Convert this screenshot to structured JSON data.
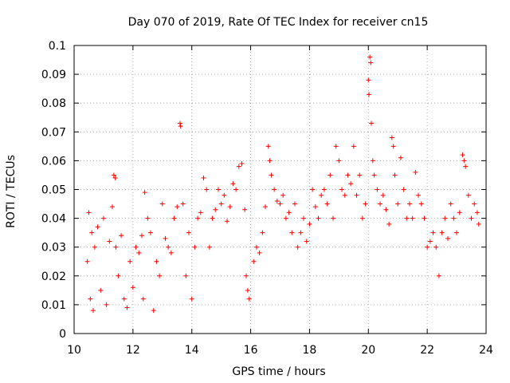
{
  "chart_data": {
    "type": "scatter",
    "title": "Day 070 of 2019, Rate Of TEC Index for receiver cn15",
    "xlabel": "GPS time / hours",
    "ylabel": "ROTI / TECUs",
    "xlim": [
      10,
      24
    ],
    "ylim": [
      0,
      0.1
    ],
    "xticks": [
      10,
      12,
      14,
      16,
      18,
      20,
      22,
      24
    ],
    "yticks": [
      0,
      0.01,
      0.02,
      0.03,
      0.04,
      0.05,
      0.06,
      0.07,
      0.08,
      0.09,
      0.1
    ],
    "grid": true,
    "marker": "plus",
    "color": "#ff0000",
    "series": [
      {
        "name": "ROTI",
        "x": [
          10.45,
          10.5,
          10.55,
          10.6,
          10.65,
          10.7,
          10.8,
          10.9,
          11.0,
          11.1,
          11.2,
          11.3,
          11.35,
          11.4,
          11.42,
          11.5,
          11.6,
          11.7,
          11.8,
          11.9,
          12.0,
          12.1,
          12.2,
          12.3,
          12.35,
          12.4,
          12.5,
          12.6,
          12.7,
          12.8,
          12.9,
          13.0,
          13.1,
          13.2,
          13.3,
          13.4,
          13.5,
          13.6,
          13.62,
          13.7,
          13.8,
          13.9,
          14.0,
          14.1,
          14.2,
          14.3,
          14.4,
          14.5,
          14.6,
          14.7,
          14.8,
          14.9,
          15.0,
          15.1,
          15.2,
          15.3,
          15.4,
          15.5,
          15.6,
          15.7,
          15.8,
          15.85,
          15.9,
          15.95,
          16.1,
          16.2,
          16.3,
          16.4,
          16.5,
          16.6,
          16.65,
          16.7,
          16.8,
          16.9,
          17.0,
          17.1,
          17.2,
          17.3,
          17.4,
          17.5,
          17.6,
          17.7,
          17.8,
          17.9,
          18.0,
          18.1,
          18.2,
          18.3,
          18.4,
          18.5,
          18.6,
          18.7,
          18.8,
          18.9,
          19.0,
          19.1,
          19.2,
          19.3,
          19.4,
          19.5,
          19.6,
          19.7,
          19.8,
          19.9,
          20.0,
          20.02,
          20.05,
          20.08,
          20.1,
          20.15,
          20.2,
          20.3,
          20.4,
          20.5,
          20.6,
          20.7,
          20.8,
          20.85,
          20.9,
          21.0,
          21.1,
          21.2,
          21.3,
          21.4,
          21.5,
          21.6,
          21.7,
          21.8,
          21.9,
          22.0,
          22.1,
          22.2,
          22.3,
          22.4,
          22.5,
          22.6,
          22.7,
          22.8,
          22.9,
          23.0,
          23.1,
          23.2,
          23.25,
          23.3,
          23.4,
          23.5,
          23.6,
          23.7,
          23.75
        ],
        "y": [
          0.025,
          0.042,
          0.012,
          0.035,
          0.008,
          0.03,
          0.037,
          0.015,
          0.04,
          0.01,
          0.032,
          0.044,
          0.055,
          0.054,
          0.03,
          0.02,
          0.034,
          0.012,
          0.009,
          0.025,
          0.016,
          0.03,
          0.028,
          0.034,
          0.012,
          0.049,
          0.04,
          0.035,
          0.008,
          0.025,
          0.02,
          0.045,
          0.033,
          0.03,
          0.028,
          0.04,
          0.044,
          0.073,
          0.072,
          0.045,
          0.02,
          0.035,
          0.012,
          0.03,
          0.04,
          0.042,
          0.054,
          0.05,
          0.03,
          0.04,
          0.043,
          0.05,
          0.045,
          0.048,
          0.039,
          0.044,
          0.052,
          0.05,
          0.058,
          0.059,
          0.043,
          0.02,
          0.015,
          0.012,
          0.025,
          0.03,
          0.028,
          0.035,
          0.044,
          0.065,
          0.06,
          0.055,
          0.05,
          0.046,
          0.045,
          0.048,
          0.04,
          0.042,
          0.035,
          0.045,
          0.03,
          0.035,
          0.04,
          0.032,
          0.038,
          0.05,
          0.044,
          0.04,
          0.048,
          0.05,
          0.045,
          0.055,
          0.04,
          0.065,
          0.06,
          0.05,
          0.048,
          0.055,
          0.052,
          0.065,
          0.048,
          0.055,
          0.04,
          0.045,
          0.088,
          0.083,
          0.096,
          0.094,
          0.073,
          0.06,
          0.055,
          0.05,
          0.045,
          0.048,
          0.043,
          0.038,
          0.068,
          0.065,
          0.055,
          0.045,
          0.061,
          0.05,
          0.04,
          0.045,
          0.04,
          0.056,
          0.048,
          0.045,
          0.04,
          0.03,
          0.032,
          0.035,
          0.03,
          0.02,
          0.035,
          0.04,
          0.033,
          0.045,
          0.04,
          0.035,
          0.042,
          0.062,
          0.06,
          0.058,
          0.048,
          0.04,
          0.045,
          0.042,
          0.038
        ]
      }
    ]
  }
}
